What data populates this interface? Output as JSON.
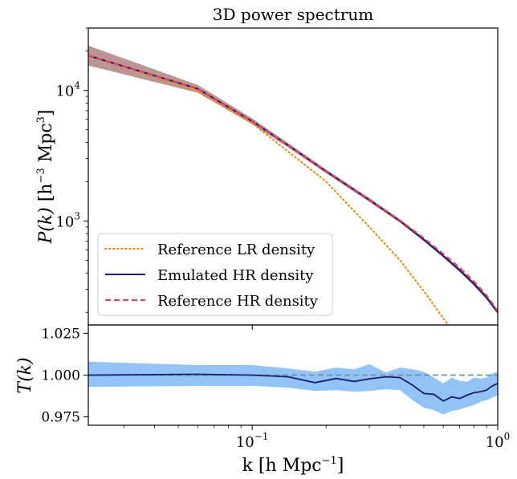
{
  "chart_data": [
    {
      "type": "line",
      "title": "3D power spectrum",
      "ylabel_main": "P(k)",
      "ylabel_unit_base": "[h",
      "ylabel_unit_exp": "−3",
      "ylabel_unit_mid": " Mpc",
      "ylabel_unit_exp2": "3",
      "ylabel_unit_end": "]",
      "xscale": "log",
      "yscale": "log",
      "xlim": [
        0.0215,
        1.0
      ],
      "ylim": [
        160,
        30000
      ],
      "yticks": [
        {
          "value": 10000,
          "base": "10",
          "exp": "4"
        },
        {
          "value": 1000,
          "base": "10",
          "exp": "3"
        }
      ],
      "legend": {
        "position": "lower-left",
        "entries": [
          "Reference LR density",
          "Emulated HR density",
          "Reference HR density"
        ]
      },
      "series": [
        {
          "name": "Reference LR density",
          "color": "#e6890f",
          "style": "dotted",
          "x": [
            0.0215,
            0.06,
            0.1,
            0.14,
            0.2,
            0.3,
            0.4,
            0.5,
            0.6,
            0.7
          ],
          "y": [
            18500,
            10000,
            5600,
            3400,
            2000,
            900,
            500,
            290,
            180,
            120
          ]
        },
        {
          "name": "Emulated HR density",
          "color": "#1c1c6e",
          "style": "solid",
          "x": [
            0.0215,
            0.06,
            0.1,
            0.14,
            0.2,
            0.3,
            0.4,
            0.5,
            0.6,
            0.7,
            0.8,
            0.9,
            1.0
          ],
          "y": [
            18500,
            10300,
            5800,
            3800,
            2400,
            1450,
            1000,
            720,
            540,
            420,
            330,
            260,
            200
          ],
          "band": {
            "color": "#a6706f",
            "lower": [
              15500,
              9600,
              5500,
              3650,
              2320,
              1400,
              970,
              700,
              525,
              405,
              318,
              250,
              193
            ],
            "upper": [
              22000,
              11000,
              6100,
              3950,
              2480,
              1500,
              1030,
              740,
              555,
              435,
              342,
              270,
              207
            ]
          }
        },
        {
          "name": "Reference HR density",
          "color": "#e8415f",
          "style": "dashed",
          "x": [
            0.0215,
            0.06,
            0.1,
            0.14,
            0.2,
            0.3,
            0.4,
            0.5,
            0.6,
            0.7,
            0.8,
            0.9,
            1.0
          ],
          "y": [
            18500,
            10300,
            5800,
            3800,
            2420,
            1460,
            1010,
            740,
            560,
            440,
            345,
            270,
            205
          ]
        }
      ]
    },
    {
      "type": "line",
      "ylabel": "T(k)",
      "xlabel_base": "k [h Mpc",
      "xlabel_exp": "−1",
      "xlabel_end": "]",
      "xscale": "log",
      "xlim": [
        0.0215,
        1.0
      ],
      "ylim": [
        0.97,
        1.03
      ],
      "yticks": [
        "1.025",
        "1.000",
        "0.975"
      ],
      "xticks": [
        {
          "value": 0.1,
          "base": "10",
          "exp": "−1"
        },
        {
          "value": 1.0,
          "base": "10",
          "exp": "0"
        }
      ],
      "reference_line": {
        "value": 1.0,
        "color": "#6e93a7",
        "style": "dashed"
      },
      "series": [
        {
          "color": "#1c1c6e",
          "x": [
            0.0215,
            0.06,
            0.1,
            0.14,
            0.18,
            0.22,
            0.26,
            0.3,
            0.35,
            0.4,
            0.45,
            0.5,
            0.55,
            0.6,
            0.65,
            0.7,
            0.75,
            0.8,
            0.85,
            0.9,
            0.95,
            1.0
          ],
          "y": [
            1.0,
            1.0005,
            1.0,
            0.999,
            0.9955,
            0.998,
            0.9962,
            0.9978,
            0.999,
            0.9985,
            0.994,
            0.989,
            0.9885,
            0.9845,
            0.987,
            0.986,
            0.988,
            0.9895,
            0.99,
            0.991,
            0.9935,
            0.995
          ],
          "band": {
            "color": "#92c3f7",
            "lower": [
              0.993,
              0.9935,
              0.9935,
              0.9925,
              0.9905,
              0.991,
              0.99,
              0.9905,
              0.9915,
              0.991,
              0.985,
              0.9805,
              0.979,
              0.9765,
              0.9785,
              0.9795,
              0.981,
              0.982,
              0.984,
              0.985,
              0.9865,
              0.988
            ],
            "upper": [
              1.008,
              1.006,
              1.006,
              1.004,
              1.002,
              1.0045,
              1.0035,
              1.0065,
              1.0015,
              1.0045,
              1.0035,
              1.002,
              0.9985,
              0.995,
              0.9985,
              0.9965,
              0.996,
              0.9985,
              0.998,
              0.9985,
              1.001,
              1.002
            ]
          }
        }
      ]
    }
  ]
}
